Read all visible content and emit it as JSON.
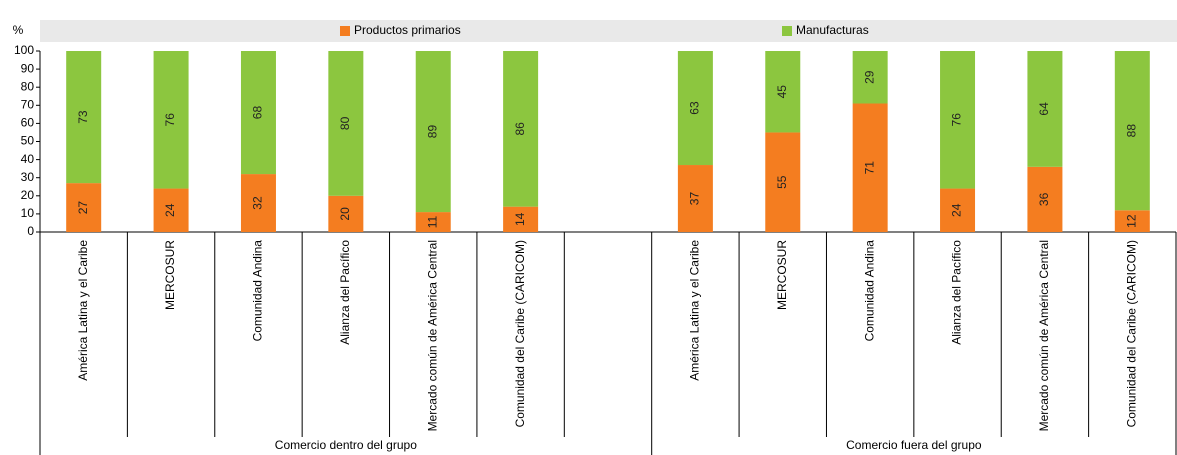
{
  "chart_data": {
    "type": "stacked_bar",
    "y_axis_label": "%",
    "categories": [
      "América Latina y el Caribe",
      "MERCOSUR",
      "Comunidad Andina",
      "Alianza del Pacífico",
      "Mercado común de América Central",
      "Comunidad del Caribe (CARICOM)",
      null,
      "América Latina y el Caribe",
      "MERCOSUR",
      "Comunidad Andina",
      "Alianza del Pacífico",
      "Mercado común de América Central",
      "Comunidad del Caribe (CARICOM)"
    ],
    "group_labels": [
      "Comercio dentro del grupo",
      "Comercio fuera del grupo"
    ],
    "series": [
      {
        "name": "Productos primarios",
        "color": "#f47d20",
        "values": [
          27,
          24,
          32,
          20,
          11,
          14,
          null,
          37,
          55,
          71,
          24,
          36,
          12
        ]
      },
      {
        "name": "Manufacturas",
        "color": "#8cc63f",
        "values": [
          73,
          76,
          68,
          80,
          89,
          86,
          null,
          63,
          45,
          29,
          76,
          64,
          88
        ]
      }
    ],
    "ylim": [
      0,
      100
    ],
    "yticks": [
      0,
      10,
      20,
      30,
      40,
      50,
      60,
      70,
      80,
      90,
      100
    ]
  }
}
